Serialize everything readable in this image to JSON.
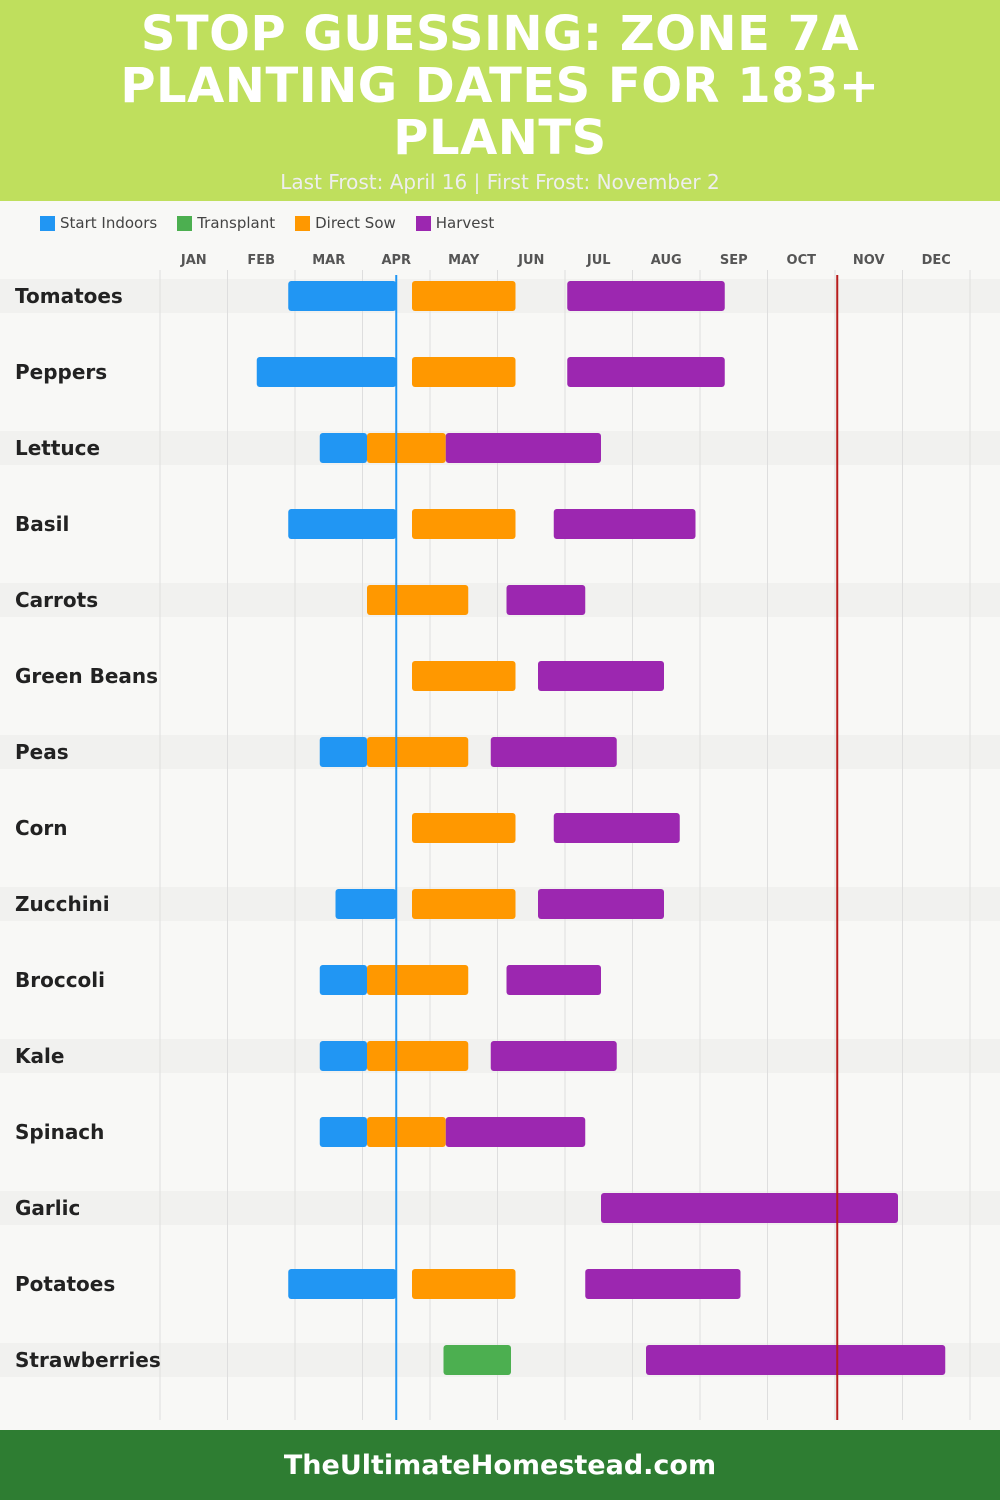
{
  "header": {
    "title_lines": [
      "STOP GUESSING: ZONE 7A",
      "PLANTING DATES FOR 183+",
      "PLANTS"
    ],
    "subtitle": "Last Frost: April 16 | First Frost: November 2"
  },
  "legend": [
    {
      "label": "Start Indoors",
      "color": "#2196f3"
    },
    {
      "label": "Transplant",
      "color": "#4caf50"
    },
    {
      "label": "Direct Sow",
      "color": "#ff9800"
    },
    {
      "label": "Harvest",
      "color": "#9c27b0"
    }
  ],
  "chart_data": {
    "type": "gantt",
    "x_axis": {
      "ticks": [
        "JAN",
        "FEB",
        "MAR",
        "APR",
        "MAY",
        "JUN",
        "JUL",
        "AUG",
        "SEP",
        "OCT",
        "NOV",
        "DEC"
      ]
    },
    "grid": true,
    "legend_placement": "top-left",
    "markers": [
      {
        "label": "Last Frost",
        "date": "04-16",
        "color": "#2196f3"
      },
      {
        "label": "First Frost",
        "date": "11-02",
        "color": "#b71c1c"
      }
    ],
    "rows": [
      {
        "plant": "Tomatoes",
        "bars": [
          {
            "phase": "Start Indoors",
            "start": "02-28",
            "end": "04-16"
          },
          {
            "phase": "Direct Sow",
            "start": "04-23",
            "end": "06-09"
          },
          {
            "phase": "Harvest",
            "start": "07-02",
            "end": "09-12"
          }
        ]
      },
      {
        "plant": "Peppers",
        "bars": [
          {
            "phase": "Start Indoors",
            "start": "02-14",
            "end": "04-16"
          },
          {
            "phase": "Direct Sow",
            "start": "04-23",
            "end": "06-09"
          },
          {
            "phase": "Harvest",
            "start": "07-02",
            "end": "09-12"
          }
        ]
      },
      {
        "plant": "Lettuce",
        "bars": [
          {
            "phase": "Start Indoors",
            "start": "03-12",
            "end": "04-03"
          },
          {
            "phase": "Direct Sow",
            "start": "04-03",
            "end": "05-08"
          },
          {
            "phase": "Harvest",
            "start": "05-08",
            "end": "07-17"
          }
        ]
      },
      {
        "plant": "Basil",
        "bars": [
          {
            "phase": "Start Indoors",
            "start": "02-28",
            "end": "04-16"
          },
          {
            "phase": "Direct Sow",
            "start": "04-23",
            "end": "06-09"
          },
          {
            "phase": "Harvest",
            "start": "06-26",
            "end": "08-29"
          }
        ]
      },
      {
        "plant": "Carrots",
        "bars": [
          {
            "phase": "Direct Sow",
            "start": "04-03",
            "end": "05-18"
          },
          {
            "phase": "Harvest",
            "start": "06-05",
            "end": "07-10"
          }
        ]
      },
      {
        "plant": "Green Beans",
        "bars": [
          {
            "phase": "Direct Sow",
            "start": "04-23",
            "end": "06-09"
          },
          {
            "phase": "Harvest",
            "start": "06-19",
            "end": "08-15"
          }
        ]
      },
      {
        "plant": "Peas",
        "bars": [
          {
            "phase": "Start Indoors",
            "start": "03-12",
            "end": "04-03"
          },
          {
            "phase": "Direct Sow",
            "start": "04-03",
            "end": "05-18"
          },
          {
            "phase": "Harvest",
            "start": "05-28",
            "end": "07-24"
          }
        ]
      },
      {
        "plant": "Corn",
        "bars": [
          {
            "phase": "Direct Sow",
            "start": "04-23",
            "end": "06-09"
          },
          {
            "phase": "Harvest",
            "start": "06-26",
            "end": "08-22"
          }
        ]
      },
      {
        "plant": "Zucchini",
        "bars": [
          {
            "phase": "Start Indoors",
            "start": "03-19",
            "end": "04-16"
          },
          {
            "phase": "Direct Sow",
            "start": "04-23",
            "end": "06-09"
          },
          {
            "phase": "Harvest",
            "start": "06-19",
            "end": "08-15"
          }
        ]
      },
      {
        "plant": "Broccoli",
        "bars": [
          {
            "phase": "Start Indoors",
            "start": "03-12",
            "end": "04-03"
          },
          {
            "phase": "Direct Sow",
            "start": "04-03",
            "end": "05-18"
          },
          {
            "phase": "Harvest",
            "start": "06-05",
            "end": "07-17"
          }
        ]
      },
      {
        "plant": "Kale",
        "bars": [
          {
            "phase": "Start Indoors",
            "start": "03-12",
            "end": "04-03"
          },
          {
            "phase": "Direct Sow",
            "start": "04-03",
            "end": "05-18"
          },
          {
            "phase": "Harvest",
            "start": "05-28",
            "end": "07-24"
          }
        ]
      },
      {
        "plant": "Spinach",
        "bars": [
          {
            "phase": "Start Indoors",
            "start": "03-12",
            "end": "04-03"
          },
          {
            "phase": "Direct Sow",
            "start": "04-03",
            "end": "05-08"
          },
          {
            "phase": "Harvest",
            "start": "05-08",
            "end": "07-10"
          }
        ]
      },
      {
        "plant": "Garlic",
        "bars": [
          {
            "phase": "Harvest",
            "start": "07-17",
            "end": "11-29"
          }
        ]
      },
      {
        "plant": "Potatoes",
        "bars": [
          {
            "phase": "Start Indoors",
            "start": "02-28",
            "end": "04-16"
          },
          {
            "phase": "Direct Sow",
            "start": "04-23",
            "end": "06-09"
          },
          {
            "phase": "Harvest",
            "start": "07-10",
            "end": "09-19"
          }
        ]
      },
      {
        "plant": "Strawberries",
        "bars": [
          {
            "phase": "Transplant",
            "start": "05-07",
            "end": "06-07"
          },
          {
            "phase": "Harvest",
            "start": "08-07",
            "end": "12-20"
          }
        ]
      }
    ]
  },
  "footer": {
    "site": "TheUltimateHomestead.com"
  }
}
